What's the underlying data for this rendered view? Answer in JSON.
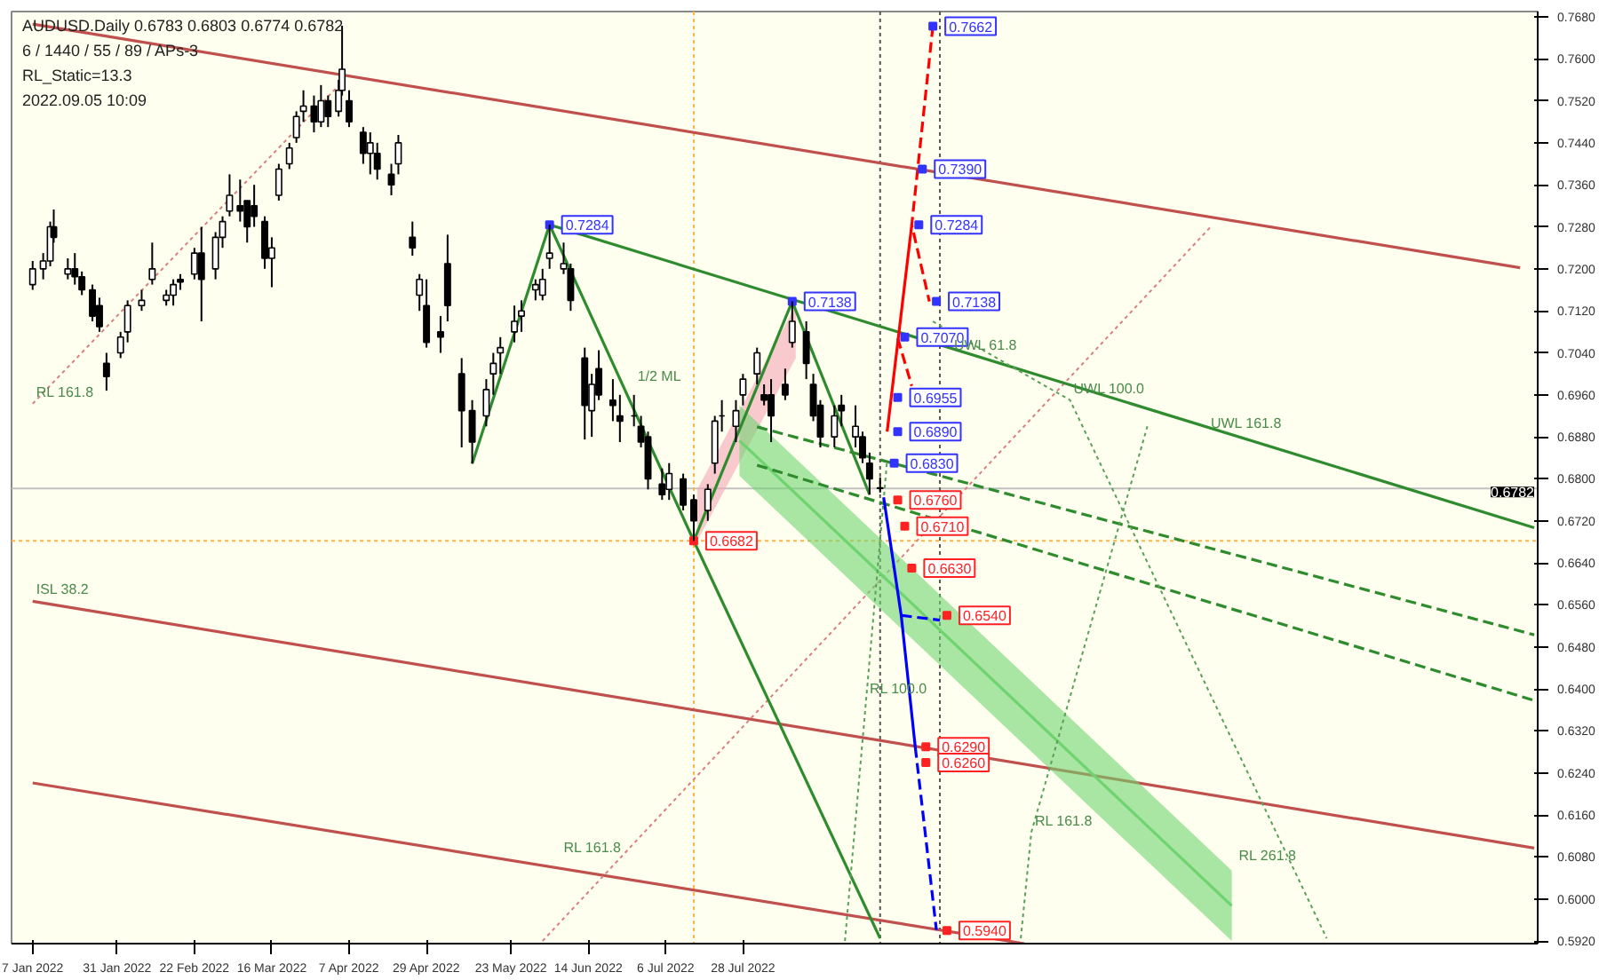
{
  "chart_data": {
    "type": "candlestick",
    "xlim": [
      "2022-01-01",
      "2023-03-11"
    ],
    "ylim": [
      0.5915,
      0.769
    ],
    "xticks": [
      {
        "value": "2022-01-07",
        "label": "7 Jan 2022"
      },
      {
        "value": "2022-01-31",
        "label": "31 Jan 2022"
      },
      {
        "value": "2022-02-22",
        "label": "22 Feb 2022"
      },
      {
        "value": "2022-03-16",
        "label": "16 Mar 2022"
      },
      {
        "value": "2022-04-07",
        "label": "7 Apr 2022"
      },
      {
        "value": "2022-04-29",
        "label": "29 Apr 2022"
      },
      {
        "value": "2022-05-23",
        "label": "23 May 2022"
      },
      {
        "value": "2022-06-14",
        "label": "14 Jun 2022"
      },
      {
        "value": "2022-07-06",
        "label": "6 Jul 2022"
      },
      {
        "value": "2022-07-28",
        "label": "28 Jul 2022"
      }
    ],
    "yticks": [
      {
        "value": 0.768,
        "label": "0.7680"
      },
      {
        "value": 0.76,
        "label": "0.7600"
      },
      {
        "value": 0.752,
        "label": "0.7520"
      },
      {
        "value": 0.744,
        "label": "0.7440"
      },
      {
        "value": 0.736,
        "label": "0.7360"
      },
      {
        "value": 0.728,
        "label": "0.7280"
      },
      {
        "value": 0.72,
        "label": "0.7200"
      },
      {
        "value": 0.712,
        "label": "0.7120"
      },
      {
        "value": 0.704,
        "label": "0.7040"
      },
      {
        "value": 0.696,
        "label": "0.6960"
      },
      {
        "value": 0.688,
        "label": "0.6880"
      },
      {
        "value": 0.68,
        "label": "0.6800"
      },
      {
        "value": 0.672,
        "label": "0.6720"
      },
      {
        "value": 0.664,
        "label": "0.6640"
      },
      {
        "value": 0.656,
        "label": "0.6560"
      },
      {
        "value": 0.648,
        "label": "0.6480"
      },
      {
        "value": 0.64,
        "label": "0.6400"
      },
      {
        "value": 0.632,
        "label": "0.6320"
      },
      {
        "value": 0.624,
        "label": "0.6240"
      },
      {
        "value": 0.616,
        "label": "0.6160"
      },
      {
        "value": 0.608,
        "label": "0.6080"
      },
      {
        "value": 0.6,
        "label": "0.6000"
      },
      {
        "value": 0.592,
        "label": "0.5920"
      }
    ],
    "x": [
      "2022-01-07",
      "2022-01-10",
      "2022-01-12",
      "2022-01-13",
      "2022-01-17",
      "2022-01-19",
      "2022-01-21",
      "2022-01-24",
      "2022-01-26",
      "2022-01-28",
      "2022-02-01",
      "2022-02-03",
      "2022-02-07",
      "2022-02-10",
      "2022-02-14",
      "2022-02-16",
      "2022-02-18",
      "2022-02-22",
      "2022-02-24",
      "2022-02-28",
      "2022-03-02",
      "2022-03-04",
      "2022-03-07",
      "2022-03-09",
      "2022-03-11",
      "2022-03-14",
      "2022-03-16",
      "2022-03-18",
      "2022-03-21",
      "2022-03-23",
      "2022-03-25",
      "2022-03-28",
      "2022-03-30",
      "2022-04-01",
      "2022-04-04",
      "2022-04-05",
      "2022-04-07",
      "2022-04-11",
      "2022-04-13",
      "2022-04-15",
      "2022-04-19",
      "2022-04-21",
      "2022-04-25",
      "2022-04-27",
      "2022-04-29",
      "2022-05-03",
      "2022-05-05",
      "2022-05-09",
      "2022-05-12",
      "2022-05-16",
      "2022-05-18",
      "2022-05-20",
      "2022-05-24",
      "2022-05-26",
      "2022-05-30",
      "2022-06-01",
      "2022-06-03",
      "2022-06-07",
      "2022-06-09",
      "2022-06-13",
      "2022-06-15",
      "2022-06-17",
      "2022-06-21",
      "2022-06-23",
      "2022-06-27",
      "2022-06-29",
      "2022-07-01",
      "2022-07-05",
      "2022-07-07",
      "2022-07-11",
      "2022-07-14",
      "2022-07-18",
      "2022-07-20",
      "2022-07-22",
      "2022-07-26",
      "2022-07-28",
      "2022-08-01",
      "2022-08-03",
      "2022-08-05",
      "2022-08-09",
      "2022-08-11",
      "2022-08-15",
      "2022-08-17",
      "2022-08-19",
      "2022-08-23",
      "2022-08-25",
      "2022-08-29",
      "2022-08-31",
      "2022-09-02",
      "2022-09-05"
    ],
    "ohlc": [
      [
        0.717,
        0.7215,
        0.716,
        0.72
      ],
      [
        0.72,
        0.723,
        0.718,
        0.7215
      ],
      [
        0.7215,
        0.729,
        0.7205,
        0.728
      ],
      [
        0.728,
        0.7313,
        0.725,
        0.726
      ],
      [
        0.719,
        0.722,
        0.718,
        0.72
      ],
      [
        0.72,
        0.723,
        0.717,
        0.7185
      ],
      [
        0.7185,
        0.7195,
        0.715,
        0.716
      ],
      [
        0.716,
        0.717,
        0.71,
        0.711
      ],
      [
        0.713,
        0.7145,
        0.708,
        0.709
      ],
      [
        0.702,
        0.704,
        0.6968,
        0.6995
      ],
      [
        0.704,
        0.708,
        0.703,
        0.707
      ],
      [
        0.708,
        0.714,
        0.706,
        0.713
      ],
      [
        0.713,
        0.716,
        0.712,
        0.714
      ],
      [
        0.718,
        0.725,
        0.717,
        0.72
      ],
      [
        0.714,
        0.716,
        0.713,
        0.715
      ],
      [
        0.715,
        0.718,
        0.713,
        0.717
      ],
      [
        0.718,
        0.719,
        0.716,
        0.7175
      ],
      [
        0.719,
        0.724,
        0.718,
        0.723
      ],
      [
        0.723,
        0.728,
        0.71,
        0.718
      ],
      [
        0.72,
        0.727,
        0.718,
        0.726
      ],
      [
        0.726,
        0.73,
        0.724,
        0.729
      ],
      [
        0.731,
        0.738,
        0.73,
        0.734
      ],
      [
        0.732,
        0.737,
        0.729,
        0.731
      ],
      [
        0.733,
        0.733,
        0.725,
        0.728
      ],
      [
        0.732,
        0.736,
        0.728,
        0.73
      ],
      [
        0.729,
        0.73,
        0.72,
        0.722
      ],
      [
        0.722,
        0.726,
        0.7165,
        0.724
      ],
      [
        0.734,
        0.74,
        0.733,
        0.739
      ],
      [
        0.74,
        0.744,
        0.739,
        0.743
      ],
      [
        0.745,
        0.75,
        0.744,
        0.749
      ],
      [
        0.75,
        0.754,
        0.748,
        0.751
      ],
      [
        0.751,
        0.753,
        0.746,
        0.748
      ],
      [
        0.748,
        0.755,
        0.747,
        0.752
      ],
      [
        0.752,
        0.753,
        0.747,
        0.749
      ],
      [
        0.75,
        0.756,
        0.749,
        0.754
      ],
      [
        0.754,
        0.7663,
        0.753,
        0.758
      ],
      [
        0.752,
        0.754,
        0.747,
        0.748
      ],
      [
        0.746,
        0.747,
        0.74,
        0.742
      ],
      [
        0.742,
        0.746,
        0.738,
        0.744
      ],
      [
        0.742,
        0.744,
        0.737,
        0.739
      ],
      [
        0.738,
        0.74,
        0.734,
        0.736
      ],
      [
        0.74,
        0.7455,
        0.738,
        0.744
      ],
      [
        0.726,
        0.729,
        0.7225,
        0.724
      ],
      [
        0.715,
        0.719,
        0.712,
        0.718
      ],
      [
        0.713,
        0.718,
        0.705,
        0.706
      ],
      [
        0.708,
        0.711,
        0.704,
        0.707
      ],
      [
        0.721,
        0.7265,
        0.71,
        0.713
      ],
      [
        0.7,
        0.703,
        0.686,
        0.693
      ],
      [
        0.693,
        0.695,
        0.6829,
        0.687
      ],
      [
        0.692,
        0.699,
        0.69,
        0.697
      ],
      [
        0.7,
        0.704,
        0.696,
        0.702
      ],
      [
        0.704,
        0.707,
        0.7,
        0.705
      ],
      [
        0.708,
        0.713,
        0.706,
        0.71
      ],
      [
        0.711,
        0.714,
        0.708,
        0.712
      ],
      [
        0.716,
        0.718,
        0.714,
        0.717
      ],
      [
        0.715,
        0.72,
        0.714,
        0.718
      ],
      [
        0.722,
        0.7284,
        0.72,
        0.723
      ],
      [
        0.72,
        0.725,
        0.719,
        0.721
      ],
      [
        0.72,
        0.721,
        0.712,
        0.714
      ],
      [
        0.703,
        0.705,
        0.6875,
        0.694
      ],
      [
        0.693,
        0.7,
        0.688,
        0.698
      ],
      [
        0.701,
        0.7045,
        0.695,
        0.696
      ],
      [
        0.695,
        0.699,
        0.691,
        0.694
      ],
      [
        0.692,
        0.696,
        0.687,
        0.691
      ],
      [
        0.692,
        0.696,
        0.69,
        0.692
      ],
      [
        0.69,
        0.692,
        0.686,
        0.687
      ],
      [
        0.688,
        0.689,
        0.678,
        0.68
      ],
      [
        0.679,
        0.682,
        0.676,
        0.677
      ],
      [
        0.678,
        0.683,
        0.676,
        0.681
      ],
      [
        0.68,
        0.681,
        0.674,
        0.675
      ],
      [
        0.676,
        0.677,
        0.6682,
        0.672
      ],
      [
        0.674,
        0.679,
        0.672,
        0.678
      ],
      [
        0.683,
        0.692,
        0.681,
        0.691
      ],
      [
        0.692,
        0.695,
        0.689,
        0.692
      ],
      [
        0.69,
        0.695,
        0.687,
        0.693
      ],
      [
        0.696,
        0.7,
        0.694,
        0.699
      ],
      [
        0.7,
        0.705,
        0.698,
        0.704
      ],
      [
        0.696,
        0.698,
        0.694,
        0.695
      ],
      [
        0.696,
        0.699,
        0.687,
        0.692
      ],
      [
        0.698,
        0.701,
        0.695,
        0.696
      ],
      [
        0.706,
        0.7138,
        0.705,
        0.71
      ],
      [
        0.708,
        0.71,
        0.699,
        0.702
      ],
      [
        0.698,
        0.7,
        0.691,
        0.692
      ],
      [
        0.694,
        0.695,
        0.686,
        0.688
      ],
      [
        0.688,
        0.694,
        0.686,
        0.692
      ],
      [
        0.694,
        0.696,
        0.69,
        0.693
      ],
      [
        0.688,
        0.694,
        0.686,
        0.69
      ],
      [
        0.688,
        0.689,
        0.683,
        0.684
      ],
      [
        0.683,
        0.685,
        0.677,
        0.68
      ],
      [
        0.6783,
        0.6803,
        0.6774,
        0.6782
      ]
    ],
    "series": [
      {
        "type": "line",
        "color": "#c0504d",
        "line_style": "solid",
        "x": [
          "2022-01-07",
          "2023-03-06"
        ],
        "values": [
          0.7666,
          0.7202
        ]
      },
      {
        "type": "line",
        "color": "#c0504d",
        "line_style": "solid",
        "x": [
          "2022-01-07",
          "2023-03-10"
        ],
        "values": [
          0.6567,
          0.6097
        ]
      },
      {
        "type": "line",
        "color": "#c0504d",
        "line_style": "solid",
        "x": [
          "2022-01-07",
          "2022-10-16"
        ],
        "values": [
          0.6221,
          0.5915
        ]
      },
      {
        "type": "line",
        "color": "#d98080",
        "line_style": "dotted",
        "x": [
          "2022-01-07",
          "2022-04-04"
        ],
        "values": [
          0.6943,
          0.7549
        ]
      },
      {
        "type": "line",
        "color": "#d98080",
        "line_style": "dotted",
        "x": [
          "2022-06-01",
          "2022-12-08"
        ],
        "values": [
          0.592,
          0.728
        ]
      },
      {
        "type": "line",
        "color": "#f4a6b8",
        "x": [
          "2022-07-15",
          "2022-08-12"
        ],
        "values": [
          null,
          null
        ],
        "lower": [
          0.6682,
          0.703
        ],
        "upper": [
          0.678,
          0.713
        ]
      },
      {
        "type": "line",
        "color": "#6fd46f",
        "line_style": "solid",
        "x": [
          "2022-07-27",
          "2022-12-14"
        ],
        "values": [
          0.6873,
          0.5987
        ],
        "lower": [
          0.6806,
          0.592
        ],
        "upper": [
          0.694,
          0.6054
        ]
      },
      {
        "type": "line",
        "color": "#2e8b2e",
        "line_style": "solid",
        "x": [
          "2022-05-12",
          "2022-06-03",
          "2022-07-14",
          "2022-08-11",
          "2022-09-02"
        ],
        "values": [
          0.6829,
          0.7284,
          0.6682,
          0.7138,
          0.677
        ]
      },
      {
        "type": "line",
        "color": "#2e8b2e",
        "line_style": "solid",
        "x": [
          "2022-06-03",
          "2023-03-10"
        ],
        "values": [
          0.7284,
          0.6707
        ]
      },
      {
        "type": "line",
        "color": "#2e8b2e",
        "line_style": "solid",
        "x": [
          "2022-07-14",
          "2022-09-05"
        ],
        "values": [
          0.6682,
          0.5925
        ]
      },
      {
        "type": "line",
        "color": "#2e8b2e",
        "line_style": "dashed",
        "x": [
          "2022-08-01",
          "2023-03-10"
        ],
        "values": [
          0.6899,
          0.6503
        ]
      },
      {
        "type": "line",
        "color": "#2e8b2e",
        "line_style": "dashed",
        "x": [
          "2022-08-01",
          "2023-03-10"
        ],
        "values": [
          0.6826,
          0.6378
        ]
      },
      {
        "type": "line",
        "color": "#ff0000",
        "line_style": "solid",
        "x": [
          "2022-09-07",
          "2022-09-14"
        ],
        "values": [
          0.689,
          0.7284
        ]
      },
      {
        "type": "line",
        "color": "#ff0000",
        "line_style": "dashed",
        "x": [
          "2022-09-20",
          "2022-09-14",
          "2022-09-19"
        ],
        "values": [
          0.7662,
          0.7284,
          0.7138
        ]
      },
      {
        "type": "line",
        "color": "#5aa05a",
        "line_style": "dotted",
        "x": [
          "2022-08-26",
          "2022-09-01",
          "2022-09-07"
        ],
        "values": [
          0.592,
          0.6378,
          0.6836
        ]
      },
      {
        "type": "line",
        "color": "#5aa05a",
        "line_style": "dotted",
        "x": [
          "2022-10-15",
          "2022-10-18",
          "2022-11-20"
        ],
        "values": [
          0.5925,
          0.6127,
          0.69
        ]
      },
      {
        "type": "line",
        "color": "#5aa05a",
        "line_style": "dotted",
        "x": [
          "2022-09-20",
          "2022-10-29",
          "2023-01-10"
        ],
        "values": [
          0.71,
          0.695,
          0.5925
        ]
      },
      {
        "type": "line",
        "color": "#ff0000",
        "line_style": "dashed",
        "x": [
          "2022-09-10",
          "2022-09-14"
        ],
        "values": [
          0.7068,
          0.6977
        ]
      },
      {
        "type": "line",
        "color": "#0000ff",
        "line_style": "solid",
        "x": [
          "2022-09-06",
          "2022-09-09",
          "2022-09-11",
          "2022-09-15"
        ],
        "values": [
          0.6765,
          0.663,
          0.654,
          0.6289
        ]
      },
      {
        "type": "line",
        "color": "#0000ff",
        "line_style": "dashed",
        "x": [
          "2022-09-15",
          "2022-09-21"
        ],
        "values": [
          0.6289,
          0.5941
        ]
      },
      {
        "type": "line",
        "color": "#0000ff",
        "line_style": "dashed",
        "x": [
          "2022-09-11",
          "2022-09-22"
        ],
        "values": [
          0.654,
          0.6531
        ]
      },
      {
        "type": "scatter",
        "marker": "square",
        "color": "#3333ff",
        "x": [
          "2022-06-03",
          "2022-08-11",
          "2022-09-20",
          "2022-09-17",
          "2022-09-16",
          "2022-09-21",
          "2022-09-12",
          "2022-09-10",
          "2022-09-10",
          "2022-09-09"
        ],
        "values": [
          0.7284,
          0.7138,
          0.7662,
          0.739,
          0.7284,
          0.7138,
          0.707,
          0.6955,
          0.689,
          0.683
        ],
        "value_labels": [
          "0.7284",
          "0.7138",
          "0.7662",
          "0.7390",
          "0.7284",
          "0.7138",
          "0.7070",
          "0.6955",
          "0.6890",
          "0.6830"
        ]
      },
      {
        "type": "scatter",
        "marker": "square",
        "color": "#ff2222",
        "x": [
          "2022-07-14",
          "2022-09-10",
          "2022-09-12",
          "2022-09-14",
          "2022-09-24",
          "2022-09-18",
          "2022-09-18",
          "2022-09-24"
        ],
        "values": [
          0.6682,
          0.676,
          0.671,
          0.663,
          0.654,
          0.629,
          0.626,
          0.594
        ],
        "value_labels": [
          "0.6682",
          "0.6760",
          "0.6710",
          "0.6630",
          "0.6540",
          "0.6290",
          "0.6260",
          "0.5940"
        ]
      }
    ],
    "ref_lines": [
      {
        "axis": "y",
        "value": 0.6782,
        "label": "0.6782",
        "color": "#c0c0c0",
        "line_style": "solid"
      },
      {
        "axis": "y",
        "value": 0.6682,
        "color": "#ffb347",
        "line_style": "dotted"
      },
      {
        "axis": "x",
        "value": "2022-07-14",
        "color": "#ffb347",
        "line_style": "dotted"
      },
      {
        "axis": "x",
        "value": "2022-09-05",
        "color": "#555555",
        "line_style": "dotted"
      },
      {
        "axis": "x",
        "value": "2022-09-22",
        "color": "#555555",
        "line_style": "dotted"
      }
    ],
    "annotations": [
      "AUDUSD.Daily  0.6783 0.6803 0.6774 0.6782",
      "6 / 1440 / 55 / 89 / APs-3",
      "RL_Static=13.3",
      "2022.09.05 10:09",
      {
        "text": "1/2 ML",
        "x": "2022-06-27",
        "y": 0.6973
      },
      {
        "text": "ISL 38.2",
        "x": "2022-01-07",
        "y": 0.6567
      },
      {
        "text": "RL 161.8",
        "x": "2022-01-07",
        "y": 0.6943
      },
      {
        "text": "RL 161.8",
        "x": "2022-06-06",
        "y": 0.6075
      },
      {
        "text": "RL 100.0",
        "x": "2022-09-01",
        "y": 0.6378
      },
      {
        "text": "RL 161.8",
        "x": "2022-10-18",
        "y": 0.6127
      },
      {
        "text": "RL 261.8",
        "x": "2022-12-15",
        "y": 0.606
      },
      {
        "text": "UWL 61.8",
        "x": "2022-09-25",
        "y": 0.7033
      },
      {
        "text": "UWL 100.0",
        "x": "2022-10-29",
        "y": 0.695
      },
      {
        "text": "UWL 161.8",
        "x": "2022-12-07",
        "y": 0.6883
      }
    ]
  }
}
